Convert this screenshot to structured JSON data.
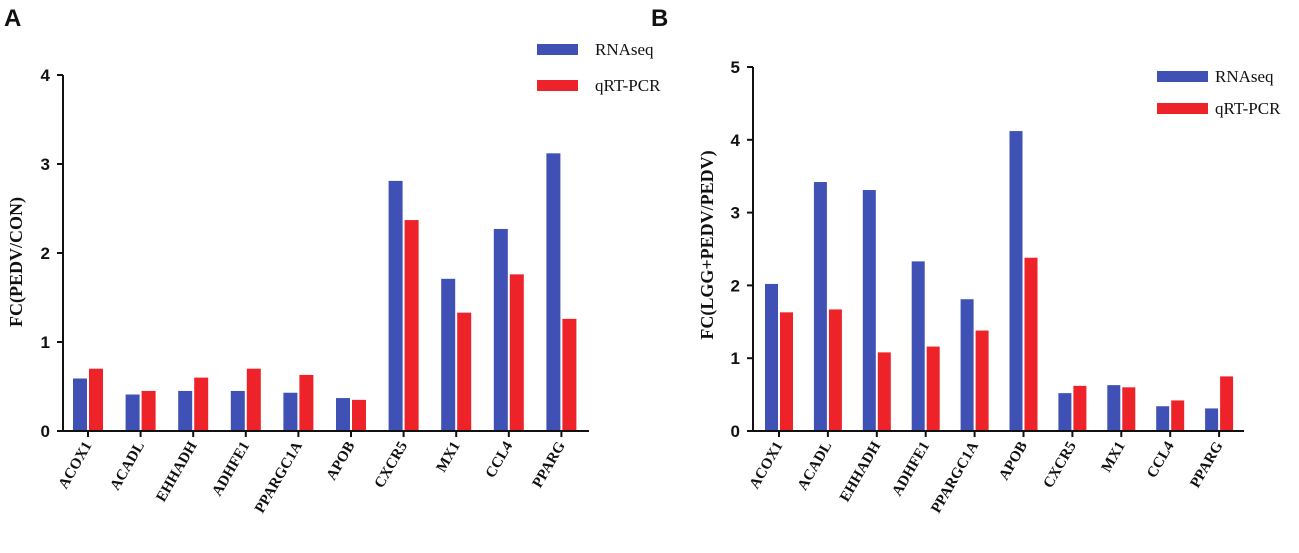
{
  "chart_data": [
    {
      "type": "bar",
      "panel": "A",
      "title": "",
      "xlabel": "",
      "ylabel": "FC(PEDV/CON)",
      "ylim": [
        0,
        4
      ],
      "yticks": [
        "0",
        "1",
        "2",
        "3",
        "4"
      ],
      "grid": false,
      "legend_position": "top-right",
      "categories": [
        "ACOX1",
        "ACADL",
        "EHHADH",
        "ADHFE1",
        "PPARGC1A",
        "APOB",
        "CXCR5",
        "MX1",
        "CCL4",
        "PPARG"
      ],
      "series": [
        {
          "name": "RNAseq",
          "color": "#3f51b5",
          "values": [
            0.59,
            0.41,
            0.45,
            0.45,
            0.43,
            0.37,
            2.81,
            1.71,
            2.27,
            3.12
          ]
        },
        {
          "name": "qRT-PCR",
          "color": "#ee2229",
          "values": [
            0.7,
            0.45,
            0.6,
            0.7,
            0.63,
            0.35,
            2.37,
            1.33,
            1.76,
            1.26
          ]
        }
      ]
    },
    {
      "type": "bar",
      "panel": "B",
      "title": "",
      "xlabel": "",
      "ylabel": "FC(LGG+PEDV/PEDV)",
      "ylim": [
        0,
        5
      ],
      "yticks": [
        "0",
        "1",
        "2",
        "3",
        "4",
        "5"
      ],
      "grid": false,
      "legend_position": "top-right",
      "categories": [
        "ACOX1",
        "ACADL",
        "EHHADH",
        "ADHFE1",
        "PPARGC1A",
        "APOB",
        "CXCR5",
        "MX1",
        "CCL4",
        "PPARG"
      ],
      "series": [
        {
          "name": "RNAseq",
          "color": "#3f51b5",
          "values": [
            2.02,
            3.42,
            3.31,
            2.33,
            1.81,
            4.12,
            0.52,
            0.63,
            0.34,
            0.31
          ]
        },
        {
          "name": "qRT-PCR",
          "color": "#ee2229",
          "values": [
            1.63,
            1.67,
            1.08,
            1.16,
            1.38,
            2.38,
            0.62,
            0.6,
            0.42,
            0.75
          ]
        }
      ]
    }
  ]
}
